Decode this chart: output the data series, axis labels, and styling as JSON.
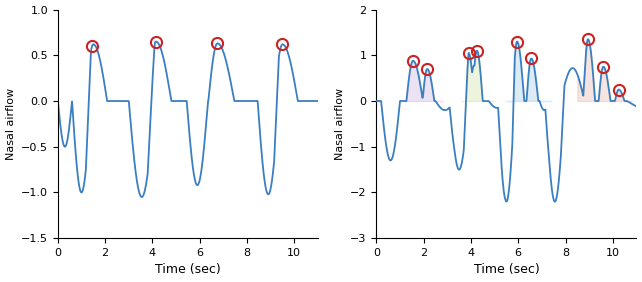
{
  "line_color": "#3a7fc1",
  "circle_color": "#cc2222",
  "circle_lw": 1.5,
  "line_width": 1.3,
  "background": "#ffffff",
  "left": {
    "ylabel": "Nasal airflow",
    "xlabel": "Time (sec)",
    "xlim": [
      0,
      11
    ],
    "ylim": [
      -1.5,
      1.0
    ],
    "yticks": [
      -1.5,
      -1.0,
      -0.5,
      0.0,
      0.5,
      1.0
    ],
    "xticks": [
      0,
      2,
      4,
      6,
      8,
      10
    ],
    "circles": [
      [
        1.45,
        0.6
      ],
      [
        4.15,
        0.65
      ],
      [
        6.75,
        0.63
      ],
      [
        9.5,
        0.62
      ]
    ]
  },
  "right": {
    "ylabel": "Nasal airflow",
    "xlabel": "Time (sec)",
    "xlim": [
      0,
      11
    ],
    "ylim": [
      -3.0,
      2.0
    ],
    "yticks": [
      -3,
      -2,
      -1,
      0,
      1,
      2
    ],
    "xticks": [
      0,
      2,
      4,
      6,
      8,
      10
    ],
    "circles": [
      [
        1.55,
        0.88
      ],
      [
        2.15,
        0.7
      ],
      [
        3.9,
        1.05
      ],
      [
        4.25,
        1.1
      ],
      [
        5.95,
        1.3
      ],
      [
        6.55,
        0.93
      ],
      [
        8.95,
        1.35
      ],
      [
        9.6,
        0.75
      ],
      [
        10.25,
        0.25
      ]
    ],
    "shaded_regions": [
      {
        "xstart": 1.2,
        "xend": 2.8,
        "color": "#c0a0d8",
        "alpha": 0.3
      },
      {
        "xstart": 3.6,
        "xend": 5.0,
        "color": "#c8d890",
        "alpha": 0.3
      },
      {
        "xstart": 5.5,
        "xend": 7.4,
        "color": "#90c0e0",
        "alpha": 0.3
      },
      {
        "xstart": 8.5,
        "xend": 10.8,
        "color": "#e0a898",
        "alpha": 0.3
      }
    ]
  }
}
